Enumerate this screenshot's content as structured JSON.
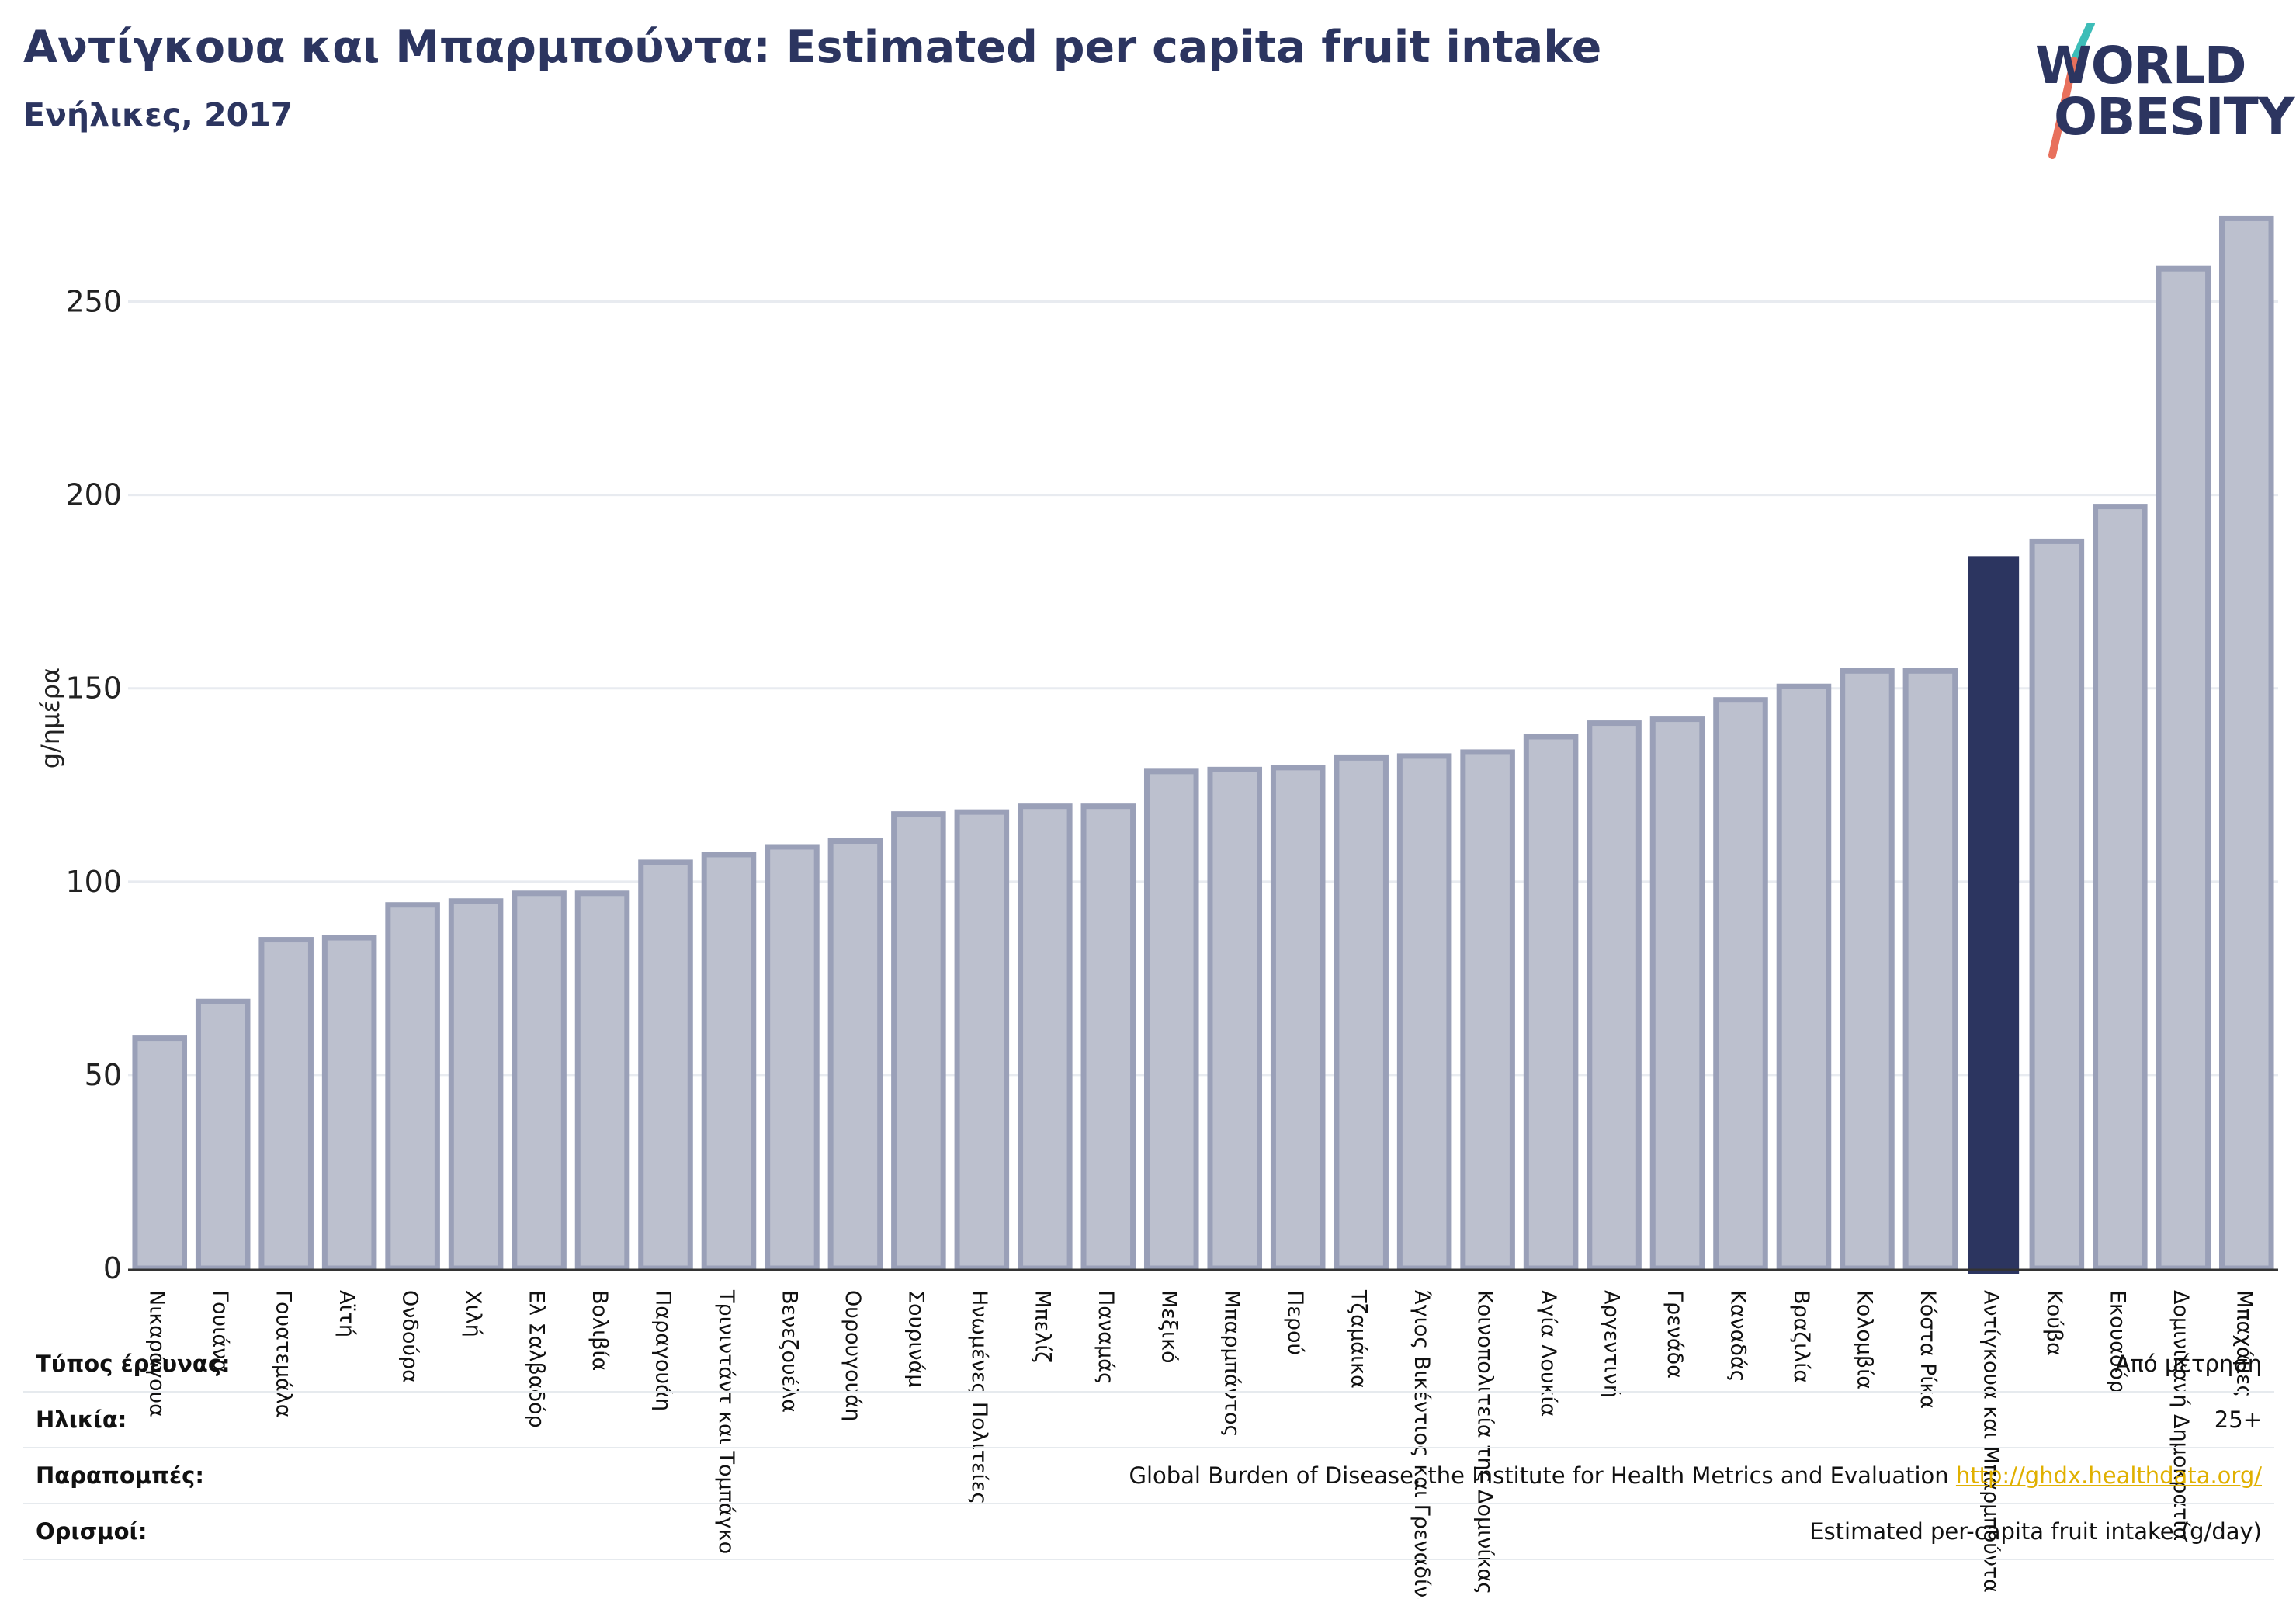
{
  "header": {
    "title": "Αντίγκουα και Μπαρμπούντα: Estimated per capita fruit intake",
    "subtitle": "Ενήλικες, 2017"
  },
  "logo": {
    "line1": "WORLD",
    "line2": "OBESITY"
  },
  "colors": {
    "highlight": "#2c3560",
    "bar_fill": "#bcc0ce",
    "bar_stroke": "#9aa0b8",
    "title": "#2c3560",
    "link": "#e0b000",
    "logo_teal": "#3dbdb8",
    "logo_coral": "#e8705c"
  },
  "chart_data": {
    "type": "bar",
    "title": "",
    "xlabel": "",
    "ylabel": "g/ημέρα",
    "ylim": [
      0,
      275
    ],
    "yticks": [
      0,
      50,
      100,
      150,
      200,
      250
    ],
    "grid": true,
    "highlight": "Αντίγκουα και Μπαρμπούντα",
    "categories": [
      "Νικαράγουα",
      "Γουιάνα",
      "Γουατεμάλα",
      "Αϊτή",
      "Ονδούρα",
      "Χιλή",
      "Ελ Σαλβαδόρ",
      "Βολιβία",
      "Παραγουάη",
      "Τρινιντάντ και Τομπάγκο",
      "Βενεζουέλα",
      "Ουρουγουάη",
      "Σουρινάμ",
      "Ηνωμένες Πολιτείες",
      "Μπελίζ",
      "Παναμάς",
      "Μεξικό",
      "Μπαρμπάντος",
      "Περού",
      "Τζαμάικα",
      "Άγιος Βικέντιος και Γρεναδίνες",
      "Κοινοπολιτεία της Δομινίκας",
      "Αγία Λουκία",
      "Αργεντινή",
      "Γρενάδα",
      "Καναδάς",
      "Βραζιλία",
      "Κολομβία",
      "Κόστα Ρίκα",
      "Αντίγκουα και Μπαρμπούντα",
      "Κούβα",
      "Εκουαδόρ",
      "Δομινικανή Δημοκρατία",
      "Μπαχάμες"
    ],
    "values": [
      59.5,
      69,
      85,
      85.5,
      94,
      95,
      97,
      97,
      105,
      107,
      109,
      110.5,
      117.5,
      118,
      119.5,
      119.5,
      128.5,
      129,
      129.5,
      132,
      132.5,
      133.5,
      137.5,
      141,
      142,
      147,
      150.5,
      154.5,
      154.5,
      184,
      188,
      197,
      258.5,
      271.5
    ]
  },
  "info": {
    "rows": [
      {
        "label": "Τύπος έρευνας:",
        "value": "Από μέτρηση"
      },
      {
        "label": "Ηλικία:",
        "value": "25+"
      },
      {
        "label": "Παραπομπές:",
        "value": "Global Burden of Disease, the Institute for Health Metrics and Evaluation",
        "link": "http://ghdx.healthdata.org/"
      },
      {
        "label": "Ορισμοί:",
        "value": "Estimated per-capita fruit intake (g/day)"
      }
    ]
  }
}
